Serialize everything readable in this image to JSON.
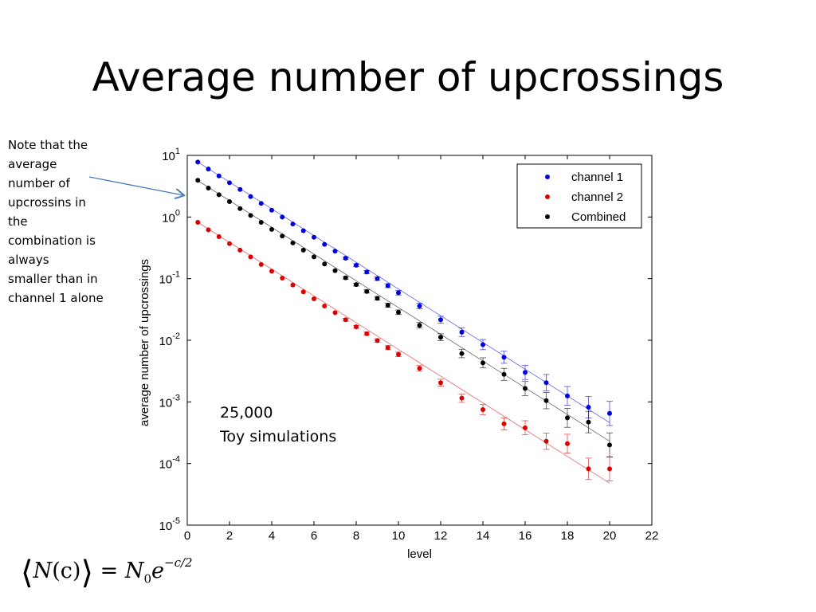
{
  "slide": {
    "title": "Average number of upcrossings",
    "note": "Note that the\naverage\nnumber of\nupcrossins  in\nthe\ncombination is\nalways\nsmaller than  in\nchannel 1 alone",
    "formula": {
      "lhs_left": "⟨",
      "lhs_var": "N",
      "lhs_arg": "(c)",
      "lhs_right": "⟩",
      "equals": " = ",
      "rhs_base": "N",
      "rhs_sub": "0",
      "rhs_exp_base": "e",
      "rhs_exp": "−c/2"
    }
  },
  "chart_data": {
    "type": "scatter",
    "xlabel": "level",
    "ylabel": "average number of upcrossings",
    "xlim": [
      0,
      22
    ],
    "ylim": [
      1e-05,
      10
    ],
    "yscale": "log",
    "xticks": [
      "0",
      "2",
      "4",
      "6",
      "8",
      "10",
      "12",
      "14",
      "16",
      "18",
      "20",
      "22"
    ],
    "yticks": [
      {
        "base": "10",
        "exp": "1",
        "value": 10
      },
      {
        "base": "10",
        "exp": "0",
        "value": 1
      },
      {
        "base": "10",
        "exp": "-1",
        "value": 0.1
      },
      {
        "base": "10",
        "exp": "-2",
        "value": 0.01
      },
      {
        "base": "10",
        "exp": "-3",
        "value": 0.001
      },
      {
        "base": "10",
        "exp": "-4",
        "value": 0.0001
      },
      {
        "base": "10",
        "exp": "-5",
        "value": 1e-05
      }
    ],
    "legend_position": "top-right",
    "annotation": [
      "25,000",
      "Toy simulations"
    ],
    "x": [
      0.5,
      1,
      1.5,
      2,
      2.5,
      3,
      3.5,
      4,
      4.5,
      5,
      5.5,
      6,
      6.5,
      7,
      7.5,
      8,
      8.5,
      9,
      9.5,
      10,
      11,
      12,
      13,
      14,
      15,
      16,
      17,
      18,
      19,
      20
    ],
    "series": [
      {
        "name": "channel 1",
        "color": "#0000dd",
        "fit": {
          "x": [
            0.5,
            20
          ],
          "y": [
            7.8,
            0.00046
          ]
        },
        "values": [
          7.8,
          6.0,
          4.65,
          3.6,
          2.8,
          2.15,
          1.66,
          1.29,
          1.0,
          0.77,
          0.6,
          0.47,
          0.36,
          0.28,
          0.215,
          0.165,
          0.128,
          0.1,
          0.077,
          0.059,
          0.036,
          0.0215,
          0.0135,
          0.0085,
          0.0053,
          0.003,
          0.00205,
          0.00125,
          0.00082,
          0.00065
        ]
      },
      {
        "name": "channel 2",
        "color": "#dd0000",
        "fit": {
          "x": [
            0.5,
            20
          ],
          "y": [
            0.82,
            4.8e-05
          ]
        },
        "values": [
          0.82,
          0.62,
          0.48,
          0.37,
          0.29,
          0.225,
          0.17,
          0.132,
          0.102,
          0.079,
          0.061,
          0.047,
          0.036,
          0.028,
          0.0215,
          0.0165,
          0.0128,
          0.0099,
          0.0076,
          0.0059,
          0.0035,
          0.00205,
          0.00115,
          0.00075,
          0.00044,
          0.00038,
          0.00023,
          0.00021,
          8.2e-05,
          8.2e-05
        ]
      },
      {
        "name": "Combined",
        "color": "#000000",
        "fit": {
          "x": [
            0.5,
            20
          ],
          "y": [
            3.9,
            0.00023
          ]
        },
        "values": [
          3.95,
          2.95,
          2.3,
          1.78,
          1.37,
          1.06,
          0.82,
          0.63,
          0.49,
          0.38,
          0.29,
          0.225,
          0.173,
          0.135,
          0.103,
          0.08,
          0.062,
          0.048,
          0.037,
          0.0285,
          0.0175,
          0.0112,
          0.0061,
          0.0043,
          0.0028,
          0.00165,
          0.00105,
          0.00055,
          0.00047,
          0.0002
        ]
      }
    ]
  }
}
